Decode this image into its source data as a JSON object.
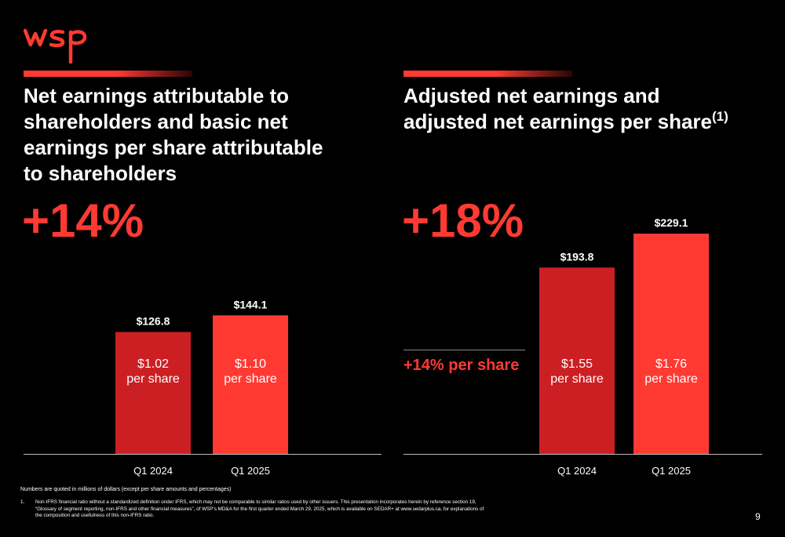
{
  "brand": {
    "logo_text": "wsp",
    "accent": "#ff3a33",
    "dark_red": "#cc1f24"
  },
  "left_panel": {
    "title": "Net earnings attributable to shareholders and basic net earnings per share attributable to shareholders",
    "growth": "+14%"
  },
  "right_panel": {
    "title": "Adjusted net earnings and adjusted net earnings per share",
    "title_superscript": "(1)",
    "growth": "+18%",
    "per_share_growth": "+14% per share"
  },
  "chart_data": [
    {
      "type": "bar",
      "categories": [
        "Q1 2024",
        "Q1 2025"
      ],
      "values": [
        126.8,
        144.1
      ],
      "value_labels": [
        "$126.8",
        "$144.1"
      ],
      "bar_labels": [
        "$1.02",
        "$1.10"
      ],
      "bar_sublabel": "per share",
      "colors": [
        "#cc1f24",
        "#ff3a33"
      ]
    },
    {
      "type": "bar",
      "categories": [
        "Q1 2024",
        "Q1 2025"
      ],
      "values": [
        193.8,
        229.1
      ],
      "value_labels": [
        "$193.8",
        "$229.1"
      ],
      "bar_labels": [
        "$1.55",
        "$1.76"
      ],
      "bar_sublabel": "per share",
      "colors": [
        "#cc1f24",
        "#ff3a33"
      ]
    }
  ],
  "footnotes": {
    "units": "Numbers are quoted in millions of dollars (except per share amounts and percentages)",
    "items": [
      {
        "number": "1.",
        "text": "Non-IFRS financial ratio without a standardized definition under IFRS, which may not be comparable to similar ratios used by other issuers. This presentation incorporates herein by reference section 19, “Glossary of segment reporting, non-IFRS and other financial measures”, of WSP’s MD&A for the first quarter ended March 29, 2025, which is available on SEDAR+ at www.sedarplus.ca, for explanations of the composition and usefulness of this non-IFRS ratio."
      }
    ]
  },
  "page_number": "9"
}
